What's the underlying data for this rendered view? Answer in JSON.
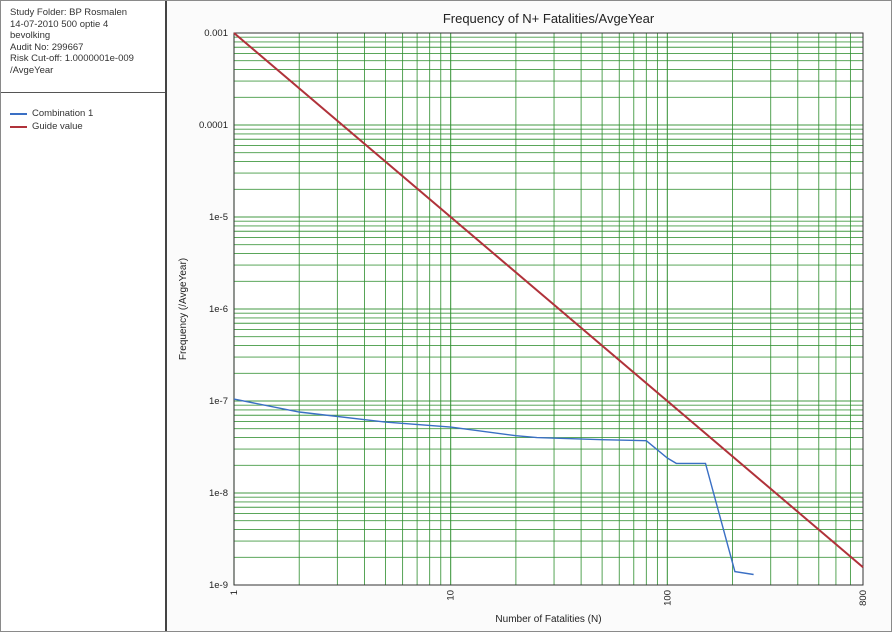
{
  "sidebar": {
    "info_lines": [
      "Study Folder: BP Rosmalen",
      "14-07-2010 500 optie 4",
      "bevolking",
      "Audit No: 299667",
      "Risk Cut-off: 1.0000001e-009",
      "/AvgeYear"
    ]
  },
  "colors": {
    "combination": "#3a6fc4",
    "guide": "#b0323a",
    "grid": "#2f8f2f"
  },
  "chart_data": {
    "type": "line",
    "title": "Frequency of N+ Fatalities/AvgeYear",
    "xlabel": "Number of Fatalities (N)",
    "ylabel": "Frequency (/AvgeYear)",
    "x_scale": "log",
    "y_scale": "log",
    "xlim": [
      1,
      800
    ],
    "ylim": [
      1e-09,
      0.001
    ],
    "x_ticks": [
      {
        "value": 1,
        "label": "1"
      },
      {
        "value": 10,
        "label": "10"
      },
      {
        "value": 100,
        "label": "100"
      },
      {
        "value": 800,
        "label": "800"
      }
    ],
    "y_ticks": [
      {
        "value": 0.001,
        "label": "0.001"
      },
      {
        "value": 0.0001,
        "label": "0.0001"
      },
      {
        "value": 1e-05,
        "label": "1e-5"
      },
      {
        "value": 1e-06,
        "label": "1e-6"
      },
      {
        "value": 1e-07,
        "label": "1e-7"
      },
      {
        "value": 1e-08,
        "label": "1e-8"
      },
      {
        "value": 1e-09,
        "label": "1e-9"
      }
    ],
    "grid": true,
    "legend": "left-panel",
    "series": [
      {
        "name": "Combination 1",
        "color": "#3a6fc4",
        "points": [
          [
            1,
            1.05e-07
          ],
          [
            2,
            7.6e-08
          ],
          [
            5,
            5.9e-08
          ],
          [
            10,
            5.2e-08
          ],
          [
            20,
            4.2e-08
          ],
          [
            25,
            4e-08
          ],
          [
            50,
            3.8e-08
          ],
          [
            80,
            3.7e-08
          ],
          [
            100,
            2.4e-08
          ],
          [
            110,
            2.1e-08
          ],
          [
            150,
            2.1e-08
          ],
          [
            205,
            1.4e-09
          ],
          [
            250,
            1.3e-09
          ]
        ]
      },
      {
        "name": "Guide value",
        "color": "#b0323a",
        "points": [
          [
            1,
            0.001
          ],
          [
            800,
            1.5625e-09
          ]
        ]
      }
    ]
  }
}
